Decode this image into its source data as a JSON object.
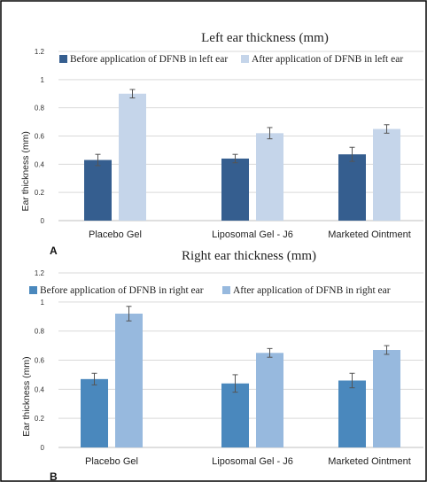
{
  "chart_data": [
    {
      "type": "bar",
      "panel_label": "A",
      "title": "Left ear thickness (mm)",
      "ylabel": "Ear thickness (mm)",
      "xlabel": "",
      "categories": [
        "Placebo Gel",
        "Liposomal Gel - J6",
        "Marketed Ointment"
      ],
      "series": [
        {
          "name": "Before application of DFNB in left ear",
          "values": [
            0.43,
            0.44,
            0.47
          ],
          "errors": [
            0.04,
            0.03,
            0.05
          ],
          "color": "#355e8f"
        },
        {
          "name": "After application of DFNB in left ear",
          "values": [
            0.9,
            0.62,
            0.65
          ],
          "errors": [
            0.03,
            0.04,
            0.03
          ],
          "color": "#c5d5ea"
        }
      ],
      "ylim": [
        0,
        1.2
      ],
      "yticks": [
        0,
        0.2,
        0.4,
        0.6,
        0.8,
        1,
        1.2
      ],
      "grid": true,
      "legend_position": "top"
    },
    {
      "type": "bar",
      "panel_label": "B",
      "title": "Right ear thickness (mm)",
      "ylabel": "Ear thickness (mm)",
      "xlabel": "",
      "categories": [
        "Placebo Gel",
        "Liposomal Gel - J6",
        "Marketed Ointment"
      ],
      "series": [
        {
          "name": "Before application of DFNB in right ear",
          "values": [
            0.47,
            0.44,
            0.46
          ],
          "errors": [
            0.04,
            0.06,
            0.05
          ],
          "color": "#4a88bd"
        },
        {
          "name": "After application of DFNB in right ear",
          "values": [
            0.92,
            0.65,
            0.67
          ],
          "errors": [
            0.05,
            0.03,
            0.03
          ],
          "color": "#97b9de"
        }
      ],
      "ylim": [
        0,
        1.2
      ],
      "yticks": [
        0,
        0.2,
        0.4,
        0.6,
        0.8,
        1,
        1.2
      ],
      "grid": true,
      "legend_position": "top"
    }
  ]
}
